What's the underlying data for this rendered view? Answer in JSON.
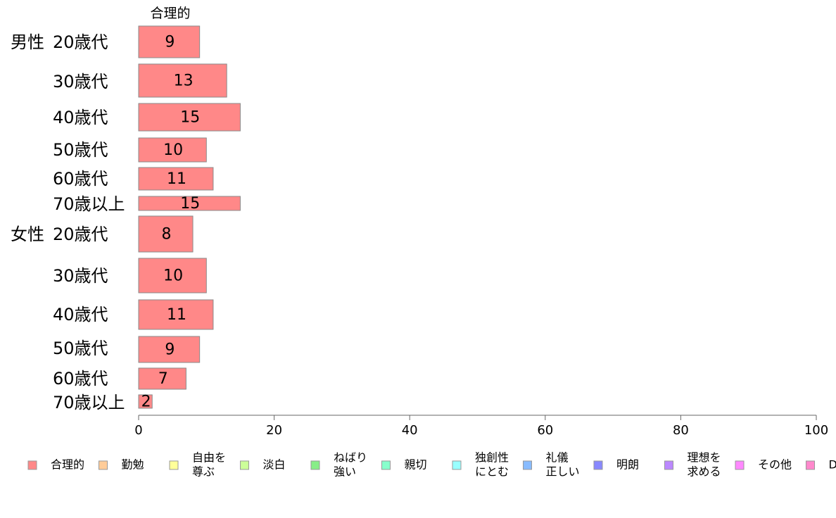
{
  "chart_data": {
    "type": "bar",
    "orientation": "horizontal",
    "stacked": true,
    "column_header": "合理的",
    "groups": [
      {
        "label": "男性",
        "first_row": 0
      },
      {
        "label": "女性",
        "first_row": 6
      }
    ],
    "categories": [
      "20歳代",
      "30歳代",
      "40歳代",
      "50歳代",
      "60歳代",
      "70歳以上",
      "20歳代",
      "30歳代",
      "40歳代",
      "50歳代",
      "60歳代",
      "70歳以上"
    ],
    "series": [
      {
        "name": "合理的",
        "color": "#ff8888",
        "values": [
          9,
          13,
          15,
          10,
          11,
          15,
          8,
          10,
          11,
          9,
          7,
          2
        ]
      }
    ],
    "xlim": [
      0,
      100
    ],
    "xticks": [
      0,
      20,
      40,
      60,
      80,
      100
    ],
    "grid": false,
    "legend_position": "bottom",
    "legend": [
      {
        "lines": [
          "合理的"
        ],
        "color": "#ff8888"
      },
      {
        "lines": [
          "勤勉"
        ],
        "color": "#ffcc99"
      },
      {
        "lines": [
          "自由を",
          "尊ぶ"
        ],
        "color": "#ffff99"
      },
      {
        "lines": [
          "淡白"
        ],
        "color": "#ccff99"
      },
      {
        "lines": [
          "ねばり",
          "強い"
        ],
        "color": "#88ee88"
      },
      {
        "lines": [
          "親切"
        ],
        "color": "#88ffcc"
      },
      {
        "lines": [
          "独創性",
          "にとむ"
        ],
        "color": "#99ffff"
      },
      {
        "lines": [
          "礼儀",
          "正しい"
        ],
        "color": "#88bbff"
      },
      {
        "lines": [
          "明朗"
        ],
        "color": "#8888ff"
      },
      {
        "lines": [
          "理想を",
          "求める"
        ],
        "color": "#bb88ff"
      },
      {
        "lines": [
          "その他"
        ],
        "color": "#ff88ff"
      },
      {
        "lines": [
          "D"
        ],
        "color": "#ff88cc"
      }
    ]
  }
}
